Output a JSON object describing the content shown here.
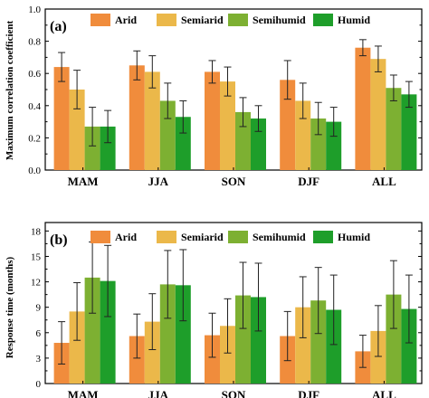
{
  "chart_data": [
    {
      "type": "bar",
      "panel_label": "(a)",
      "ylabel": "Maximum correlation coefficient",
      "xlabel": "",
      "ylim": [
        0,
        1.0
      ],
      "yticks": [
        "0.0",
        "0.2",
        "0.4",
        "0.6",
        "0.8",
        "1.0"
      ],
      "ytick_values": [
        0,
        0.2,
        0.4,
        0.6,
        0.8,
        1.0
      ],
      "categories": [
        "MAM",
        "JJA",
        "SON",
        "DJF",
        "ALL"
      ],
      "legend": {
        "placement": "top-right",
        "orientation": "horizontal"
      },
      "series": [
        {
          "name": "Arid",
          "values": [
            0.64,
            0.65,
            0.61,
            0.56,
            0.76
          ],
          "errors": [
            0.09,
            0.09,
            0.07,
            0.12,
            0.05
          ]
        },
        {
          "name": "Semiarid",
          "values": [
            0.5,
            0.61,
            0.55,
            0.43,
            0.69
          ],
          "errors": [
            0.12,
            0.1,
            0.09,
            0.11,
            0.08
          ]
        },
        {
          "name": "Semihumid",
          "values": [
            0.27,
            0.43,
            0.36,
            0.32,
            0.51
          ],
          "errors": [
            0.12,
            0.11,
            0.09,
            0.1,
            0.08
          ]
        },
        {
          "name": "Humid",
          "values": [
            0.27,
            0.33,
            0.32,
            0.3,
            0.47
          ],
          "errors": [
            0.1,
            0.1,
            0.08,
            0.09,
            0.08
          ]
        }
      ]
    },
    {
      "type": "bar",
      "panel_label": "(b)",
      "ylabel": "Response time (months)",
      "xlabel": "",
      "ylim": [
        0,
        19
      ],
      "yticks": [
        "0",
        "3",
        "6",
        "9",
        "12",
        "15",
        "18"
      ],
      "ytick_values": [
        0,
        3,
        6,
        9,
        12,
        15,
        18
      ],
      "categories": [
        "MAM",
        "JJA",
        "SON",
        "DJF",
        "ALL"
      ],
      "legend": {
        "placement": "top-right",
        "orientation": "horizontal"
      },
      "series": [
        {
          "name": "Arid",
          "values": [
            4.8,
            5.6,
            5.7,
            5.6,
            3.8
          ],
          "errors": [
            2.5,
            2.6,
            2.6,
            2.9,
            1.9
          ]
        },
        {
          "name": "Semiarid",
          "values": [
            8.5,
            7.3,
            6.8,
            9.0,
            6.2
          ],
          "errors": [
            3.4,
            3.3,
            3.2,
            3.6,
            3.0
          ]
        },
        {
          "name": "Semihumid",
          "values": [
            12.5,
            11.7,
            10.4,
            9.8,
            10.5
          ],
          "errors": [
            4.2,
            4.0,
            3.9,
            3.9,
            4.0
          ]
        },
        {
          "name": "Humid",
          "values": [
            12.1,
            11.6,
            10.2,
            8.7,
            8.8
          ],
          "errors": [
            4.2,
            4.2,
            4.0,
            4.1,
            4.0
          ]
        }
      ]
    }
  ],
  "colors": {
    "Arid": "#F08C3C",
    "Semiarid": "#EBB84A",
    "Semihumid": "#7DB032",
    "Humid": "#1E9E2A"
  }
}
